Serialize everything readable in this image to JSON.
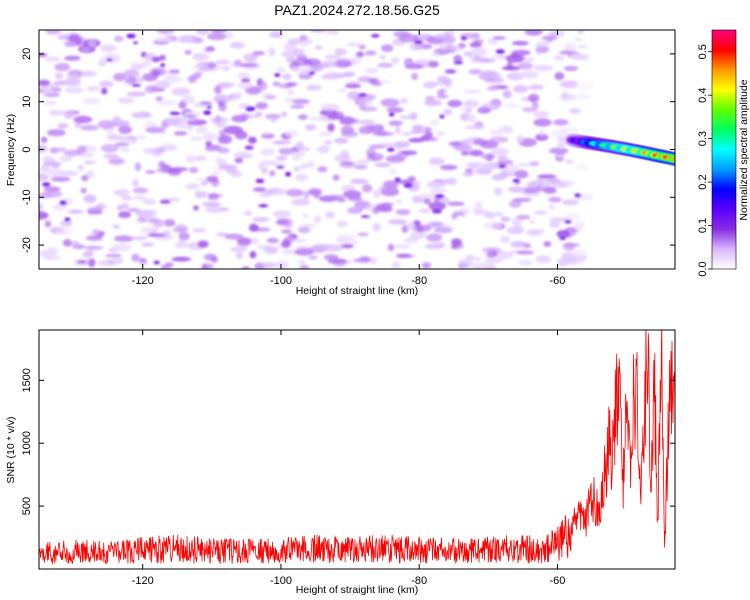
{
  "figure": {
    "title": "PAZ1.2024.272.18.56.G25"
  },
  "chart_data": [
    {
      "type": "heatmap",
      "title": "PAZ1.2024.272.18.56.G25",
      "xlabel": "Height of straight line (km)",
      "ylabel": "Frequency (Hz)",
      "xlim": [
        -135,
        -43
      ],
      "ylim": [
        -25,
        25
      ],
      "xticks": [
        -120,
        -100,
        -80,
        -60
      ],
      "yticks": [
        -20,
        -10,
        0,
        10,
        20
      ],
      "colorbar": {
        "label": "Normalized spectral amplitude",
        "range": [
          0,
          0.55
        ],
        "ticks": [
          0.0,
          0.1,
          0.2,
          0.3,
          0.4,
          0.5
        ],
        "tick_labels": [
          "0.0",
          "0.1",
          "0.2",
          "0.3",
          "0.4",
          "0.5"
        ],
        "colormap": [
          "#ffffff",
          "#d9b8ff",
          "#8a2be2",
          "#5a00ff",
          "#0000ff",
          "#00a0ff",
          "#00ffff",
          "#00ff60",
          "#60ff00",
          "#ffff00",
          "#ff9900",
          "#ff0000",
          "#ff0080"
        ]
      },
      "noise_region": {
        "x_range": [
          -135,
          -57
        ],
        "freq_range": [
          -25,
          25
        ],
        "typical_amplitude": 0.05,
        "max_amplitude": 0.1
      },
      "signal_ridge": {
        "x": [
          -58,
          -55,
          -52,
          -49,
          -46,
          -43
        ],
        "freq": [
          2.0,
          1.3,
          0.6,
          -0.2,
          -1.1,
          -2.0
        ],
        "amplitude": [
          0.12,
          0.28,
          0.38,
          0.44,
          0.5,
          0.55
        ]
      }
    },
    {
      "type": "line",
      "xlabel": "Height of straight line (km)",
      "ylabel": "SNR (10 * v/v)",
      "xlim": [
        -135,
        -43
      ],
      "ylim": [
        0,
        1900
      ],
      "xticks": [
        -120,
        -100,
        -80,
        -60
      ],
      "yticks": [
        500,
        1000,
        1500
      ],
      "series": [
        {
          "color": "#ff0000",
          "x": [
            -135,
            -130,
            -125,
            -120,
            -115,
            -110,
            -105,
            -100,
            -95,
            -90,
            -85,
            -80,
            -75,
            -70,
            -65,
            -62,
            -60,
            -58,
            -57,
            -56,
            -55,
            -54,
            -53,
            -52.5,
            -52,
            -51.5,
            -51,
            -50.5,
            -50,
            -49.5,
            -49,
            -48.5,
            -48,
            -47.5,
            -47,
            -46.5,
            -46,
            -45.5,
            -45,
            -44.5,
            -44,
            -43.5,
            -43
          ],
          "values": [
            120,
            140,
            130,
            150,
            160,
            150,
            140,
            150,
            160,
            150,
            160,
            150,
            145,
            155,
            160,
            150,
            200,
            300,
            450,
            350,
            600,
            450,
            800,
            1050,
            900,
            1300,
            1700,
            700,
            1200,
            800,
            1300,
            1450,
            500,
            1100,
            1850,
            600,
            1500,
            400,
            1800,
            150,
            1100,
            1400,
            1200
          ]
        }
      ]
    }
  ]
}
